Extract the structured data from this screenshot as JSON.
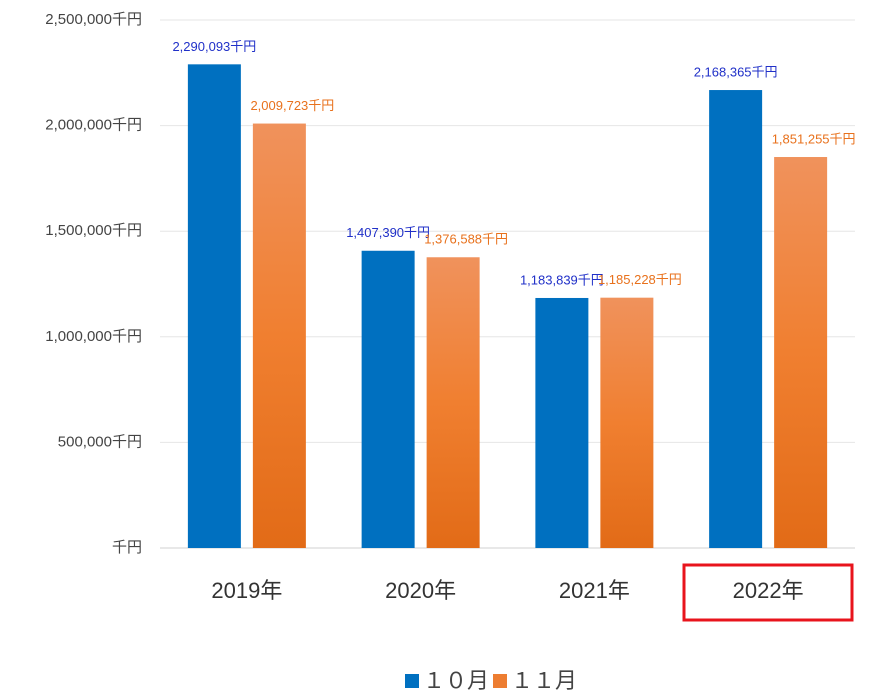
{
  "chart_data": {
    "type": "bar",
    "categories": [
      "2019年",
      "2020年",
      "2021年",
      "2022年"
    ],
    "series": [
      {
        "name": "１０月",
        "color": "#0070c0",
        "label_color": "#2030c8",
        "values": [
          2290093,
          1407390,
          1183839,
          2168365
        ],
        "value_labels": [
          "2,290,093千円",
          "1,407,390千円",
          "1,183,839千円",
          "2,168,365千円"
        ]
      },
      {
        "name": "１１月",
        "color": "#ed7d31",
        "label_color": "#e8711c",
        "values": [
          2009723,
          1376588,
          1185228,
          1851255
        ],
        "value_labels": [
          "2,009,723千円",
          "1,376,588千円",
          "1,185,228千円",
          "1,851,255千円"
        ]
      }
    ],
    "ylim": [
      0,
      2500000
    ],
    "yticks": [
      {
        "value": 0,
        "label": "千円"
      },
      {
        "value": 500000,
        "label": "500,000千円"
      },
      {
        "value": 1000000,
        "label": "1,000,000千円"
      },
      {
        "value": 1500000,
        "label": "1,500,000千円"
      },
      {
        "value": 2000000,
        "label": "2,000,000千円"
      },
      {
        "value": 2500000,
        "label": "2,500,000千円"
      }
    ],
    "grid": true,
    "legend": "bottom"
  }
}
